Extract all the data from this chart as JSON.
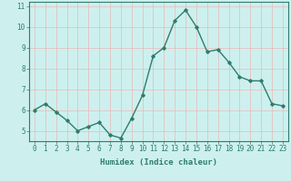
{
  "x": [
    0,
    1,
    2,
    3,
    4,
    5,
    6,
    7,
    8,
    9,
    10,
    11,
    12,
    13,
    14,
    15,
    16,
    17,
    18,
    19,
    20,
    21,
    22,
    23
  ],
  "y": [
    6.0,
    6.3,
    5.9,
    5.5,
    5.0,
    5.2,
    5.4,
    4.8,
    4.65,
    5.6,
    6.7,
    8.6,
    9.0,
    10.3,
    10.8,
    10.0,
    8.8,
    8.9,
    8.3,
    7.6,
    7.4,
    7.4,
    6.3,
    6.2
  ],
  "line_color": "#2e7d6e",
  "marker": "D",
  "marker_size": 1.8,
  "line_width": 1.0,
  "bg_color": "#cdf0ee",
  "grid_color": "#e8b8b8",
  "xlabel": "Humidex (Indice chaleur)",
  "xlim": [
    -0.5,
    23.5
  ],
  "ylim": [
    4.5,
    11.2
  ],
  "yticks": [
    5,
    6,
    7,
    8,
    9,
    10,
    11
  ],
  "xticks": [
    0,
    1,
    2,
    3,
    4,
    5,
    6,
    7,
    8,
    9,
    10,
    11,
    12,
    13,
    14,
    15,
    16,
    17,
    18,
    19,
    20,
    21,
    22,
    23
  ],
  "xlabel_fontsize": 6.5,
  "tick_fontsize": 5.5
}
